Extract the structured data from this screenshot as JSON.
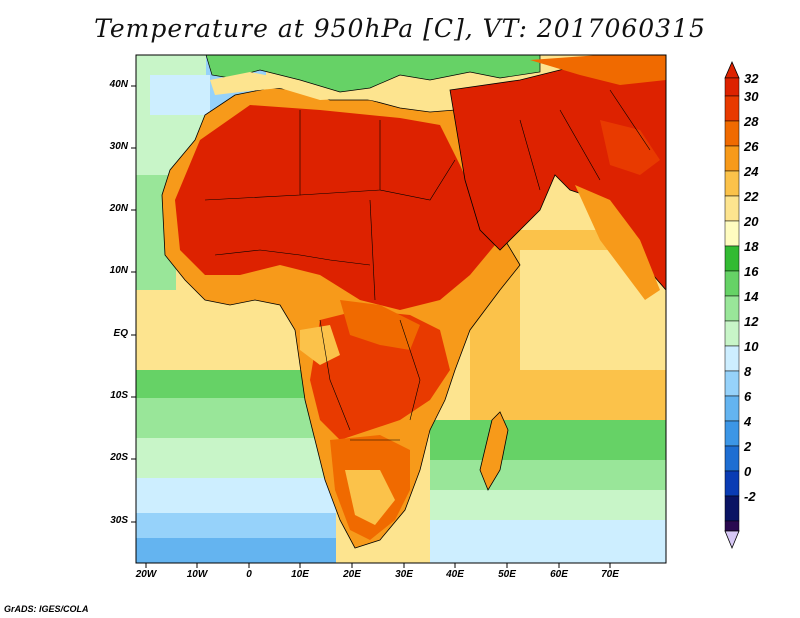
{
  "title": "Temperature at 950hPa [C], VT: 2017060315",
  "credit": "GrADS: IGES/COLA",
  "map": {
    "projection": "lat-lon",
    "lon_range": [
      -23,
      80
    ],
    "lat_range": [
      -36,
      45
    ],
    "x_ticks": [
      "20W",
      "10W",
      "0",
      "10E",
      "20E",
      "30E",
      "40E",
      "50E",
      "60E",
      "70E"
    ],
    "y_ticks": [
      "40N",
      "30N",
      "20N",
      "10N",
      "EQ",
      "10S",
      "20S",
      "30S"
    ],
    "field": "Temperature at 950hPa",
    "units": "C"
  },
  "colorbar": {
    "levels": [
      "32",
      "30",
      "28",
      "26",
      "24",
      "22",
      "20",
      "18",
      "16",
      "14",
      "12",
      "10",
      "8",
      "6",
      "4",
      "2",
      "0",
      "-2"
    ],
    "colors": [
      "#dd2200",
      "#e83a00",
      "#f06a00",
      "#f79a1a",
      "#fbc24a",
      "#fde48f",
      "#fffcc0",
      "#33bb33",
      "#66d266",
      "#99e699",
      "#c8f5c8",
      "#cdeeff",
      "#96d2fa",
      "#64b4f0",
      "#3c96e6",
      "#1e6ed2",
      "#0a3cb4",
      "#0a1464",
      "#2a0a50",
      "#d7c8f5"
    ]
  }
}
